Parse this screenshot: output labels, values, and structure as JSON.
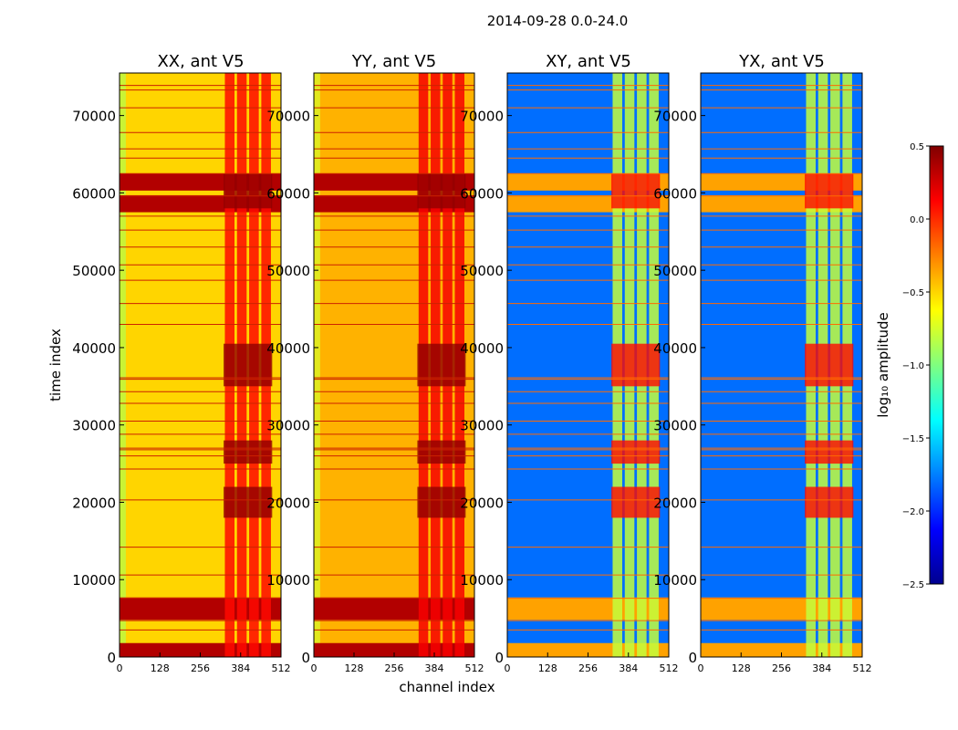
{
  "figure": {
    "suptitle": "2014-09-28 0.0-24.0"
  },
  "chart_data": [
    {
      "type": "heatmap",
      "title": "XX, ant V5",
      "xlabel": "channel index",
      "ylabel": "time index",
      "xlim": [
        0,
        512
      ],
      "ylim": [
        0,
        75500
      ],
      "xticks": [
        0,
        128,
        256,
        384,
        512
      ],
      "yticks": [
        0,
        10000,
        20000,
        30000,
        40000,
        50000,
        60000,
        70000
      ],
      "base_level": -0.5,
      "band_channels": [
        330,
        484
      ],
      "band_level": 0.1
    },
    {
      "type": "heatmap",
      "title": "YY, ant V5",
      "xlabel": "channel index",
      "ylabel": "",
      "xlim": [
        0,
        512
      ],
      "ylim": [
        0,
        75500
      ],
      "xticks": [
        0,
        128,
        256,
        384,
        512
      ],
      "yticks": [
        0,
        10000,
        20000,
        30000,
        40000,
        50000,
        60000,
        70000
      ],
      "base_level": -0.4,
      "band_channels": [
        330,
        484
      ],
      "band_level": 0.15
    },
    {
      "type": "heatmap",
      "title": "XY, ant V5",
      "xlabel": "",
      "ylabel": "",
      "xlim": [
        0,
        512
      ],
      "ylim": [
        0,
        75500
      ],
      "xticks": [
        0,
        128,
        256,
        384,
        512
      ],
      "yticks": [
        0,
        10000,
        20000,
        30000,
        40000,
        50000,
        60000,
        70000
      ],
      "base_level": -1.8,
      "band_channels": [
        330,
        484
      ],
      "band_level": -0.8
    },
    {
      "type": "heatmap",
      "title": "YX, ant V5",
      "xlabel": "",
      "ylabel": "",
      "xlim": [
        0,
        512
      ],
      "ylim": [
        0,
        75500
      ],
      "xticks": [
        0,
        128,
        256,
        384,
        512
      ],
      "yticks": [
        0,
        10000,
        20000,
        30000,
        40000,
        50000,
        60000,
        70000
      ],
      "base_level": -1.8,
      "band_channels": [
        330,
        484
      ],
      "band_level": -0.8
    }
  ],
  "colorbar": {
    "label": "log₁₀ amplitude",
    "colormap": "jet",
    "vmin": -2.5,
    "vmax": 0.5,
    "ticks": [
      "0.5",
      "0.0",
      "−0.5",
      "−1.0",
      "−1.5",
      "−2.0",
      "−2.5"
    ]
  },
  "common": {
    "bright_time_bands": [
      [
        0,
        1800
      ],
      [
        4800,
        7700
      ],
      [
        57500,
        59700
      ],
      [
        60300,
        62500
      ]
    ],
    "flag_times": [
      3500,
      4700,
      7600,
      10600,
      14200,
      20300,
      24300,
      26000,
      26800,
      27000,
      28800,
      30500,
      32800,
      34300,
      35900,
      36100,
      43000,
      45700,
      48700,
      50700,
      53000,
      55200,
      57000,
      59600,
      62500,
      64500,
      65700,
      67800,
      71000,
      73300,
      73900
    ]
  }
}
